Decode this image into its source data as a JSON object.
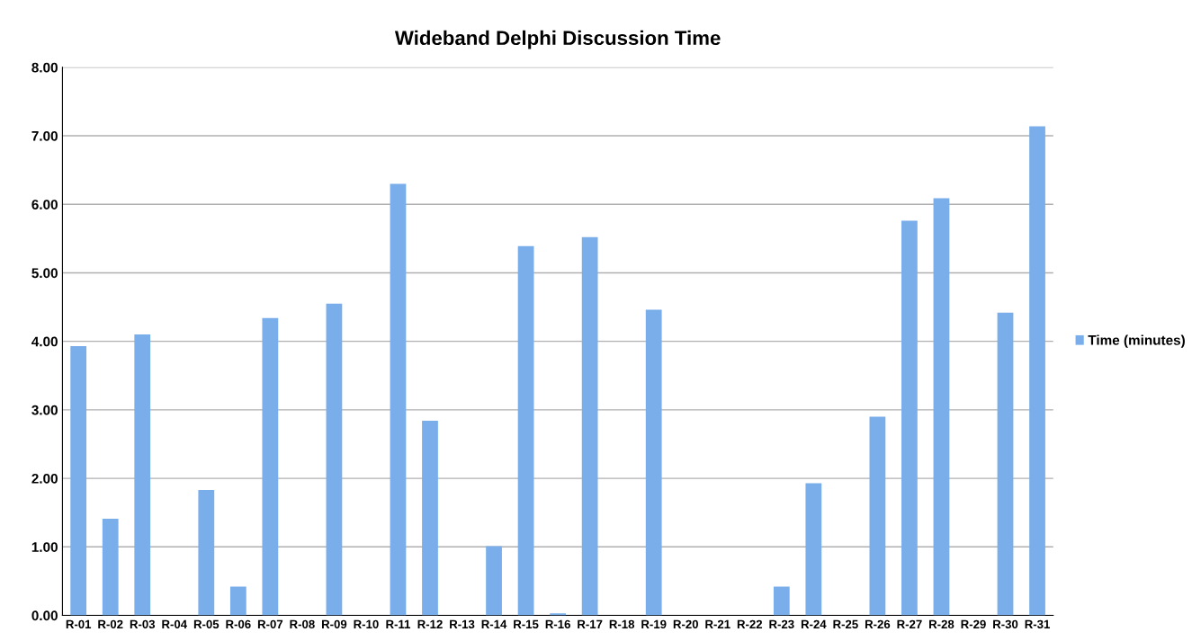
{
  "chart_data": {
    "type": "bar",
    "title": "Wideband Delphi Discussion Time",
    "categories": [
      "R-01",
      "R-02",
      "R-03",
      "R-04",
      "R-05",
      "R-06",
      "R-07",
      "R-08",
      "R-09",
      "R-10",
      "R-11",
      "R-12",
      "R-13",
      "R-14",
      "R-15",
      "R-16",
      "R-17",
      "R-18",
      "R-19",
      "R-20",
      "R-21",
      "R-22",
      "R-23",
      "R-24",
      "R-25",
      "R-26",
      "R-27",
      "R-28",
      "R-29",
      "R-30",
      "R-31"
    ],
    "series": [
      {
        "name": "Time (minutes)",
        "color": "#79aeea",
        "values": [
          3.93,
          1.41,
          4.1,
          0,
          1.83,
          0.42,
          4.34,
          0,
          4.55,
          0,
          6.3,
          2.84,
          0,
          1.01,
          5.39,
          0.03,
          5.52,
          0,
          4.46,
          0,
          0,
          0,
          0.42,
          1.93,
          0,
          2.9,
          5.76,
          6.09,
          0,
          4.42,
          7.14
        ]
      }
    ],
    "ylim": [
      0,
      8
    ],
    "yticks": [
      {
        "value": 0,
        "label": "0.00"
      },
      {
        "value": 1,
        "label": "1.00"
      },
      {
        "value": 2,
        "label": "2.00"
      },
      {
        "value": 3,
        "label": "3.00"
      },
      {
        "value": 4,
        "label": "4.00"
      },
      {
        "value": 5,
        "label": "5.00"
      },
      {
        "value": 6,
        "label": "6.00"
      },
      {
        "value": 7,
        "label": "7.00"
      },
      {
        "value": 8,
        "label": "8.00"
      }
    ],
    "grid": "y",
    "legend": "right"
  }
}
